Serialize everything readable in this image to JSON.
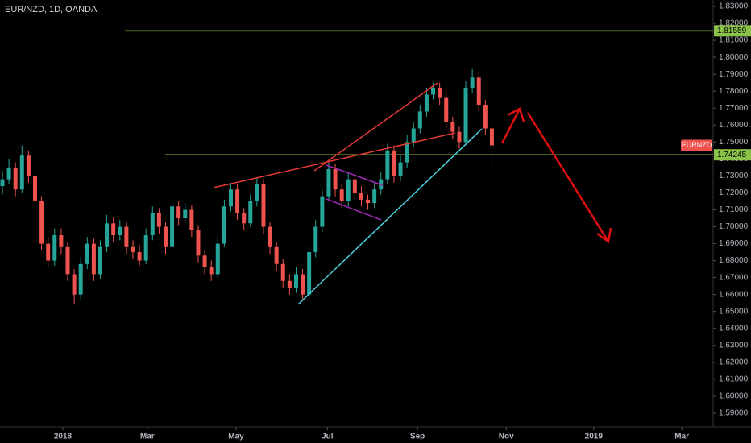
{
  "chart_data": {
    "type": "candlestick",
    "title": "EUR/NZD, 1D, OANDA",
    "up_color": "#26a69a",
    "down_color": "#ef5350",
    "candles": [
      [
        1.724,
        1.733,
        1.719,
        1.728
      ],
      [
        1.728,
        1.74,
        1.725,
        1.735
      ],
      [
        1.735,
        1.738,
        1.718,
        1.722
      ],
      [
        1.722,
        1.748,
        1.72,
        1.742
      ],
      [
        1.742,
        1.745,
        1.726,
        1.73
      ],
      [
        1.73,
        1.733,
        1.711,
        1.715
      ],
      [
        1.715,
        1.718,
        1.686,
        1.69
      ],
      [
        1.69,
        1.694,
        1.676,
        1.68
      ],
      [
        1.68,
        1.699,
        1.677,
        1.695
      ],
      [
        1.695,
        1.699,
        1.684,
        1.688
      ],
      [
        1.688,
        1.691,
        1.668,
        1.672
      ],
      [
        1.672,
        1.675,
        1.654,
        1.66
      ],
      [
        1.66,
        1.682,
        1.657,
        1.678
      ],
      [
        1.678,
        1.694,
        1.675,
        1.69
      ],
      [
        1.69,
        1.693,
        1.668,
        1.672
      ],
      [
        1.672,
        1.692,
        1.669,
        1.688
      ],
      [
        1.688,
        1.707,
        1.685,
        1.702
      ],
      [
        1.702,
        1.706,
        1.691,
        1.695
      ],
      [
        1.695,
        1.704,
        1.692,
        1.7
      ],
      [
        1.7,
        1.703,
        1.684,
        1.688
      ],
      [
        1.688,
        1.692,
        1.681,
        1.685
      ],
      [
        1.685,
        1.689,
        1.677,
        1.68
      ],
      [
        1.68,
        1.699,
        1.678,
        1.695
      ],
      [
        1.695,
        1.712,
        1.692,
        1.708
      ],
      [
        1.708,
        1.711,
        1.696,
        1.7
      ],
      [
        1.7,
        1.703,
        1.684,
        1.688
      ],
      [
        1.688,
        1.716,
        1.686,
        1.712
      ],
      [
        1.712,
        1.715,
        1.701,
        1.705
      ],
      [
        1.705,
        1.714,
        1.702,
        1.71
      ],
      [
        1.71,
        1.713,
        1.694,
        1.698
      ],
      [
        1.698,
        1.701,
        1.679,
        1.683
      ],
      [
        1.683,
        1.686,
        1.672,
        1.676
      ],
      [
        1.676,
        1.68,
        1.668,
        1.672
      ],
      [
        1.672,
        1.694,
        1.67,
        1.69
      ],
      [
        1.69,
        1.716,
        1.688,
        1.712
      ],
      [
        1.712,
        1.726,
        1.709,
        1.722
      ],
      [
        1.722,
        1.725,
        1.704,
        1.708
      ],
      [
        1.708,
        1.711,
        1.698,
        1.702
      ],
      [
        1.702,
        1.719,
        1.7,
        1.715
      ],
      [
        1.715,
        1.729,
        1.712,
        1.725
      ],
      [
        1.725,
        1.728,
        1.696,
        1.7
      ],
      [
        1.7,
        1.703,
        1.684,
        1.688
      ],
      [
        1.688,
        1.691,
        1.674,
        1.678
      ],
      [
        1.678,
        1.681,
        1.664,
        1.668
      ],
      [
        1.668,
        1.672,
        1.66,
        1.664
      ],
      [
        1.664,
        1.676,
        1.661,
        1.672
      ],
      [
        1.672,
        1.675,
        1.657,
        1.66
      ],
      [
        1.66,
        1.689,
        1.658,
        1.685
      ],
      [
        1.685,
        1.704,
        1.682,
        1.7
      ],
      [
        1.7,
        1.722,
        1.697,
        1.718
      ],
      [
        1.718,
        1.738,
        1.715,
        1.734
      ],
      [
        1.734,
        1.737,
        1.718,
        1.722
      ],
      [
        1.722,
        1.725,
        1.711,
        1.715
      ],
      [
        1.715,
        1.732,
        1.712,
        1.728
      ],
      [
        1.728,
        1.731,
        1.716,
        1.72
      ],
      [
        1.72,
        1.724,
        1.712,
        1.716
      ],
      [
        1.716,
        1.719,
        1.71,
        1.714
      ],
      [
        1.714,
        1.726,
        1.711,
        1.722
      ],
      [
        1.722,
        1.732,
        1.719,
        1.728
      ],
      [
        1.728,
        1.749,
        1.725,
        1.745
      ],
      [
        1.745,
        1.748,
        1.726,
        1.73
      ],
      [
        1.73,
        1.742,
        1.727,
        1.738
      ],
      [
        1.738,
        1.754,
        1.735,
        1.75
      ],
      [
        1.75,
        1.762,
        1.747,
        1.758
      ],
      [
        1.758,
        1.772,
        1.755,
        1.768
      ],
      [
        1.768,
        1.782,
        1.765,
        1.778
      ],
      [
        1.778,
        1.785,
        1.775,
        1.782
      ],
      [
        1.782,
        1.785,
        1.772,
        1.776
      ],
      [
        1.776,
        1.779,
        1.758,
        1.762
      ],
      [
        1.762,
        1.765,
        1.752,
        1.756
      ],
      [
        1.756,
        1.759,
        1.746,
        1.75
      ],
      [
        1.75,
        1.786,
        1.748,
        1.782
      ],
      [
        1.782,
        1.793,
        1.779,
        1.788
      ],
      [
        1.788,
        1.791,
        1.768,
        1.772
      ],
      [
        1.772,
        1.775,
        1.754,
        1.758
      ],
      [
        1.758,
        1.761,
        1.736,
        1.748
      ]
    ],
    "xlim": [
      -0.37,
      108.9
    ],
    "xticks": [
      {
        "value": 9.26,
        "label": "2018"
      },
      {
        "value": 22.2,
        "label": "Mar"
      },
      {
        "value": 35.8,
        "label": "May"
      },
      {
        "value": 49.8,
        "label": "Jul"
      },
      {
        "value": 63.6,
        "label": "Sep"
      },
      {
        "value": 77.2,
        "label": "Nov"
      },
      {
        "value": 90.6,
        "label": "2019"
      },
      {
        "value": 104.1,
        "label": "Mar"
      }
    ],
    "ylim": [
      1.5819,
      1.8338
    ],
    "yticks": [
      {
        "value": 1.83,
        "label": "1.83000"
      },
      {
        "value": 1.82,
        "label": "1.82000"
      },
      {
        "value": 1.81,
        "label": "1.81000"
      },
      {
        "value": 1.8,
        "label": "1.80000"
      },
      {
        "value": 1.79,
        "label": "1.79000"
      },
      {
        "value": 1.78,
        "label": "1.78000"
      },
      {
        "value": 1.77,
        "label": "1.77000"
      },
      {
        "value": 1.76,
        "label": "1.76000"
      },
      {
        "value": 1.75,
        "label": "1.75000"
      },
      {
        "value": 1.74,
        "label": "1.74000"
      },
      {
        "value": 1.73,
        "label": "1.73000"
      },
      {
        "value": 1.72,
        "label": "1.72000"
      },
      {
        "value": 1.71,
        "label": "1.71000"
      },
      {
        "value": 1.7,
        "label": "1.70000"
      },
      {
        "value": 1.69,
        "label": "1.69000"
      },
      {
        "value": 1.68,
        "label": "1.68000"
      },
      {
        "value": 1.67,
        "label": "1.67000"
      },
      {
        "value": 1.66,
        "label": "1.66000"
      },
      {
        "value": 1.65,
        "label": "1.65000"
      },
      {
        "value": 1.64,
        "label": "1.64000"
      },
      {
        "value": 1.63,
        "label": "1.63000"
      },
      {
        "value": 1.62,
        "label": "1.62000"
      },
      {
        "value": 1.61,
        "label": "1.61000"
      },
      {
        "value": 1.6,
        "label": "1.60000"
      },
      {
        "value": 1.59,
        "label": "1.59000"
      }
    ],
    "levels": [
      {
        "value": 1.81559,
        "label": "1.81559",
        "color": "#8bc34a"
      },
      {
        "value": 1.74245,
        "label": "1.74245",
        "color": "#8bc34a"
      }
    ],
    "symbol_label": "EURNZD",
    "symbol_color": "#ef5350"
  }
}
